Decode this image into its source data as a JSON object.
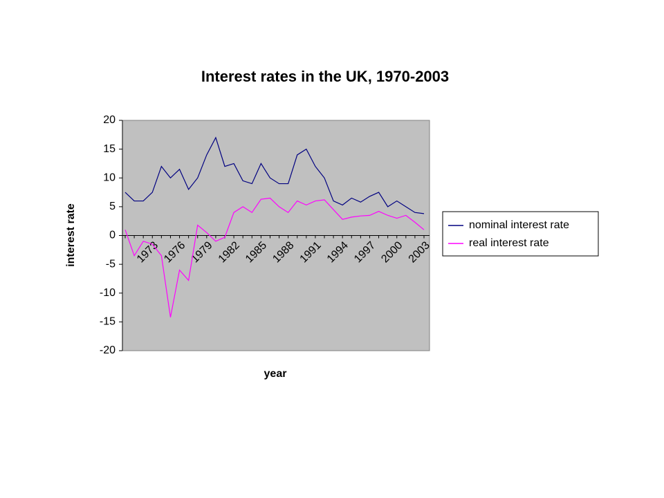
{
  "chart_data": {
    "type": "line",
    "title": "Interest rates in the UK, 1970-2003",
    "x_label": "year",
    "y_label": "interest rate",
    "categories": [
      null,
      null,
      null,
      "1973",
      null,
      null,
      "1976",
      null,
      null,
      "1979",
      null,
      null,
      "1982",
      null,
      null,
      "1985",
      null,
      null,
      "1988",
      null,
      null,
      "1991",
      null,
      null,
      "1994",
      null,
      null,
      "1997",
      null,
      null,
      "2000",
      null,
      null,
      "2003"
    ],
    "series": [
      {
        "name": "nominal interest rate",
        "color": "#000080",
        "values": [
          7.5,
          6,
          6,
          7.5,
          12,
          10,
          11.5,
          8,
          10,
          14,
          17,
          12,
          12.5,
          9.5,
          9,
          12.5,
          10,
          9,
          9,
          14,
          15,
          12,
          10,
          6,
          5.3,
          6.5,
          5.8,
          6.8,
          7.5,
          5,
          6,
          5,
          4,
          3.8
        ]
      },
      {
        "name": "real interest rate",
        "color": "#ff00ff",
        "values": [
          1,
          -3.5,
          -1,
          -1.5,
          -3.5,
          -14.2,
          -6,
          -7.8,
          1.8,
          0.5,
          -1,
          -0.3,
          4,
          5,
          4,
          6.3,
          6.5,
          5,
          4,
          6,
          5.3,
          6,
          6.2,
          4.5,
          2.8,
          3.2,
          3.4,
          3.5,
          4.2,
          3.5,
          3,
          3.5,
          2.3,
          1
        ]
      }
    ],
    "ylim": [
      -20,
      20
    ],
    "yticks": [
      -20,
      -15,
      -10,
      -5,
      0,
      5,
      10,
      15,
      20
    ],
    "grid": false,
    "legend": "right"
  }
}
